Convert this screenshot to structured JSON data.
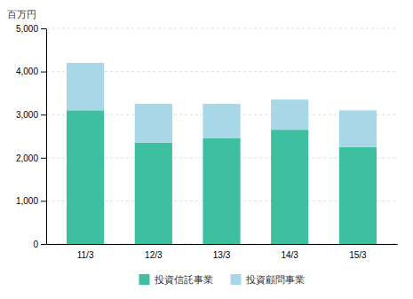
{
  "chart_data": {
    "type": "bar",
    "stacked": true,
    "grid": true,
    "legend": "bottom",
    "ylabel": "百万円",
    "categories": [
      "11/3",
      "12/3",
      "13/3",
      "14/3",
      "15/3"
    ],
    "series": [
      {
        "name": "投資信託事業",
        "color": "#3dbfa0",
        "values": [
          3100,
          2350,
          2450,
          2650,
          2250
        ]
      },
      {
        "name": "投資顧問事業",
        "color": "#a8d8e8",
        "values": [
          1100,
          900,
          800,
          700,
          850
        ]
      }
    ],
    "ylim": [
      0,
      5000
    ],
    "yticks": [
      0,
      {
        "value": 1000,
        "label": "1,000"
      },
      {
        "value": 2000,
        "label": "2,000"
      },
      {
        "value": 3000,
        "label": "3,000"
      },
      {
        "value": 4000,
        "label": "4,000"
      },
      {
        "value": 5000,
        "label": "5,000"
      }
    ]
  }
}
